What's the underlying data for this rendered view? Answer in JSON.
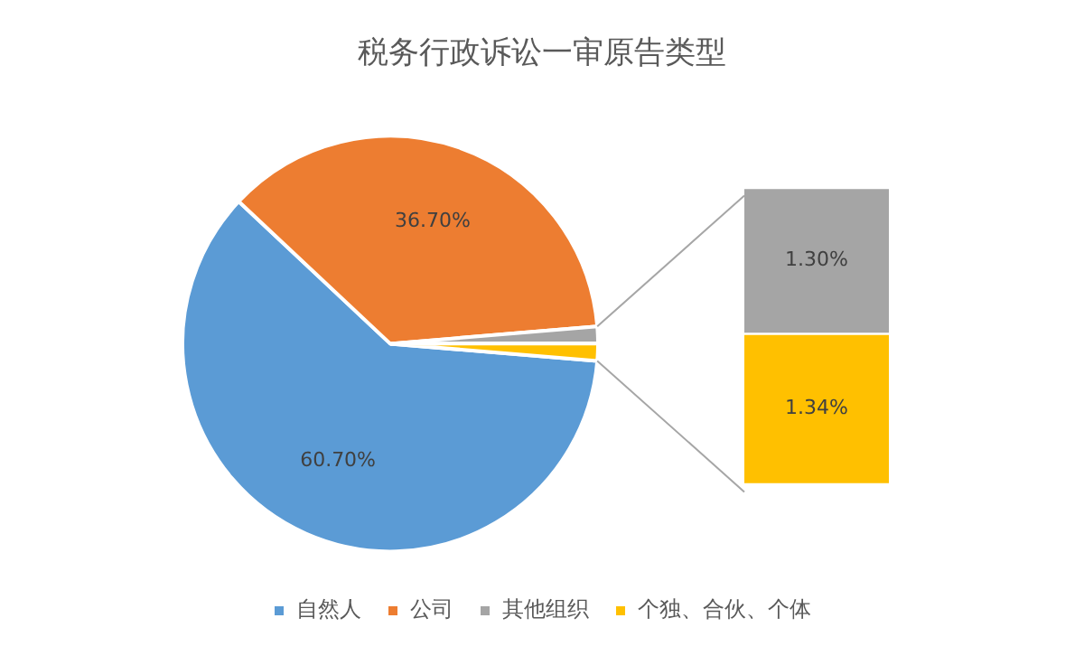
{
  "chart_data": [
    {
      "type": "pie",
      "title": "税务行政诉讼一审原告类型",
      "categories": [
        "自然人",
        "公司",
        "其他组织",
        "个独、合伙、个体"
      ],
      "values": [
        60.7,
        36.7,
        1.3,
        1.34
      ],
      "colors": [
        "#5b9bd5",
        "#ed7d31",
        "#a5a5a5",
        "#ffc000"
      ],
      "value_labels": [
        "60.70%",
        "36.70%",
        null,
        null
      ],
      "legend": "bottom"
    },
    {
      "type": "bar",
      "stacked": true,
      "categories": [
        null
      ],
      "tick_labels": false,
      "series": [
        {
          "color": "#ffc000",
          "values": [
            1.34
          ],
          "value_labels": [
            "1.34%"
          ]
        },
        {
          "color": "#a5a5a5",
          "values": [
            1.3
          ],
          "value_labels": [
            "1.30%"
          ]
        }
      ]
    }
  ]
}
